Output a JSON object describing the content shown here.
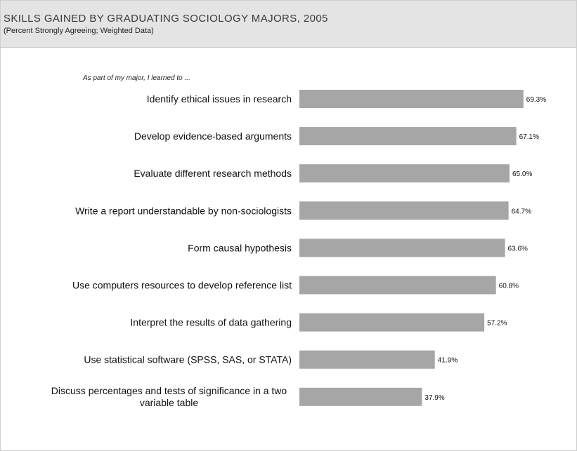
{
  "chart_data": {
    "type": "bar",
    "orientation": "horizontal",
    "title": "SKILLS GAINED BY GRADUATING SOCIOLOGY MAJORS, 2005",
    "subtitle": "(Percent Strongly Agreeing; Weighted Data)",
    "category_header": "As part of my major, I learned to ...",
    "categories": [
      "Identify ethical issues in research",
      "Develop evidence-based arguments",
      "Evaluate different research methods",
      "Write a report understandable by non-sociologists",
      "Form causal hypothesis",
      "Use computers resources to develop reference list",
      "Interpret the results of data gathering",
      "Use statistical software (SPSS, SAS, or STATA)",
      "Discuss percentages and tests of significance in a two variable table"
    ],
    "values": [
      69.3,
      67.1,
      65.0,
      64.7,
      63.6,
      60.8,
      57.2,
      41.9,
      37.9
    ],
    "value_labels": [
      "69.3%",
      "67.1%",
      "65.0%",
      "64.7%",
      "63.6%",
      "60.8%",
      "57.2%",
      "41.9%",
      "37.9%"
    ],
    "xlim": [
      0,
      100
    ],
    "grid": false,
    "legend": "none",
    "bar_color": "#a6a6a6"
  }
}
